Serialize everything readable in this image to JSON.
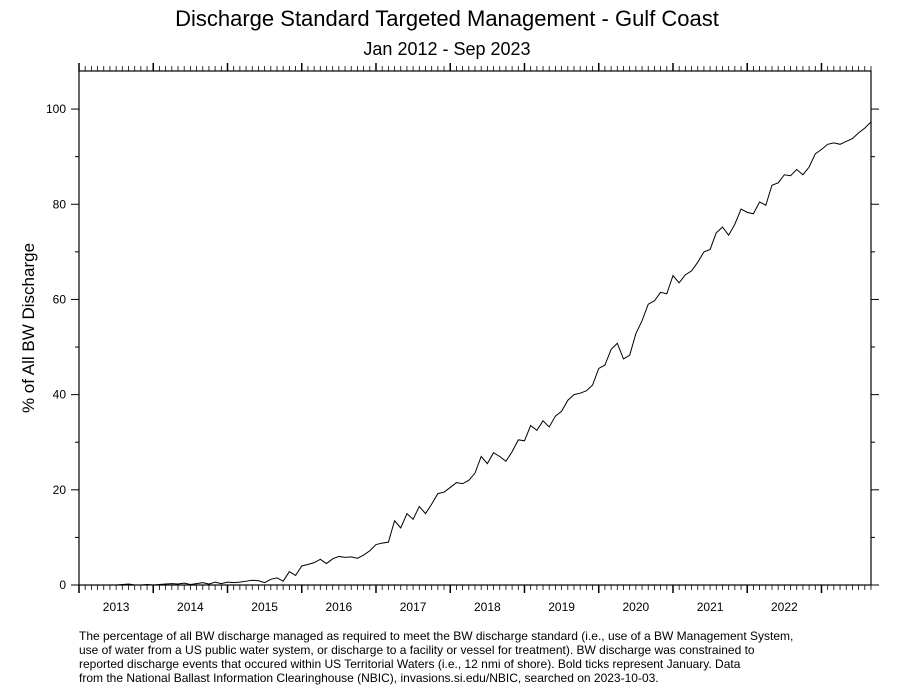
{
  "chart_data": {
    "type": "line",
    "title": "Discharge Standard Targeted Management - Gulf Coast",
    "subtitle": "Jan 2012 - Sep 2023",
    "y_label": "% of All BW Discharge",
    "note": [
      "The percentage of all BW discharge managed as required to meet the BW discharge standard (i.e., use of a BW Management System,",
      "use of water from a US public water system, or discharge to a facility or vessel for treatment). BW discharge was constrained to",
      "reported discharge events that occured within US Territorial Waters (i.e., 12 nmi of shore). Bold ticks represent January. Data",
      "from the National Ballast Information Clearinghouse (NBIC), invasions.si.edu/NBIC, searched on 2023-10-03."
    ],
    "xlim": [
      2013,
      2023.667
    ],
    "ylim": [
      0,
      108
    ],
    "yticks": [
      0,
      20,
      40,
      60,
      80,
      100
    ],
    "xticks": [
      {
        "value": 2013.5,
        "label": "2013"
      },
      {
        "value": 2014.5,
        "label": "2014"
      },
      {
        "value": 2015.5,
        "label": "2015"
      },
      {
        "value": 2016.5,
        "label": "2016"
      },
      {
        "value": 2017.5,
        "label": "2017"
      },
      {
        "value": 2018.5,
        "label": "2018"
      },
      {
        "value": 2019.5,
        "label": "2019"
      },
      {
        "value": 2020.5,
        "label": "2020"
      },
      {
        "value": 2021.5,
        "label": "2021"
      },
      {
        "value": 2022.5,
        "label": "2022"
      }
    ],
    "x": [
      2013,
      2013.083,
      2013.167,
      2013.25,
      2013.333,
      2013.417,
      2013.5,
      2013.583,
      2013.667,
      2013.75,
      2013.833,
      2013.917,
      2014,
      2014.083,
      2014.167,
      2014.25,
      2014.333,
      2014.417,
      2014.5,
      2014.583,
      2014.667,
      2014.75,
      2014.833,
      2014.917,
      2015,
      2015.083,
      2015.167,
      2015.25,
      2015.333,
      2015.417,
      2015.5,
      2015.583,
      2015.667,
      2015.75,
      2015.833,
      2015.917,
      2016,
      2016.083,
      2016.167,
      2016.25,
      2016.333,
      2016.417,
      2016.5,
      2016.583,
      2016.667,
      2016.75,
      2016.833,
      2016.917,
      2017,
      2017.083,
      2017.167,
      2017.25,
      2017.333,
      2017.417,
      2017.5,
      2017.583,
      2017.667,
      2017.75,
      2017.833,
      2017.917,
      2018,
      2018.083,
      2018.167,
      2018.25,
      2018.333,
      2018.417,
      2018.5,
      2018.583,
      2018.667,
      2018.75,
      2018.833,
      2018.917,
      2019,
      2019.083,
      2019.167,
      2019.25,
      2019.333,
      2019.417,
      2019.5,
      2019.583,
      2019.667,
      2019.75,
      2019.833,
      2019.917,
      2020,
      2020.083,
      2020.167,
      2020.25,
      2020.333,
      2020.417,
      2020.5,
      2020.583,
      2020.667,
      2020.75,
      2020.833,
      2020.917,
      2021,
      2021.083,
      2021.167,
      2021.25,
      2021.333,
      2021.417,
      2021.5,
      2021.583,
      2021.667,
      2021.75,
      2021.833,
      2021.917,
      2022,
      2022.083,
      2022.167,
      2022.25,
      2022.333,
      2022.417,
      2022.5,
      2022.583,
      2022.667,
      2022.75,
      2022.833,
      2022.917,
      2023,
      2023.083,
      2023.167,
      2023.25,
      2023.333,
      2023.417,
      2023.5,
      2023.583,
      2023.667
    ],
    "series": [
      {
        "color": "#000000",
        "values": [
          0,
          0,
          0,
          0,
          0,
          0,
          0,
          0.1,
          0.2,
          0,
          0,
          0.1,
          0,
          0.1,
          0.2,
          0.3,
          0.2,
          0.4,
          0.1,
          0.3,
          0.5,
          0.2,
          0.6,
          0.3,
          0.6,
          0.5,
          0.6,
          0.8,
          1.0,
          0.9,
          0.5,
          1.2,
          1.5,
          0.8,
          2.8,
          2.0,
          4.0,
          4.3,
          4.7,
          5.4,
          4.5,
          5.5,
          6.0,
          5.8,
          5.9,
          5.6,
          6.3,
          7.2,
          8.5,
          8.8,
          9.0,
          13.5,
          12.0,
          15.0,
          13.8,
          16.5,
          15.0,
          17.0,
          19.2,
          19.5,
          20.5,
          21.5,
          21.3,
          22.0,
          23.5,
          27.0,
          25.5,
          27.8,
          27.0,
          26.0,
          28.0,
          30.5,
          30.3,
          33.5,
          32.5,
          34.5,
          33.2,
          35.5,
          36.5,
          38.8,
          40.0,
          40.3,
          40.8,
          42.0,
          45.5,
          46.2,
          49.5,
          50.8,
          47.5,
          48.3,
          52.8,
          55.5,
          59.0,
          59.7,
          61.5,
          61.2,
          65.0,
          63.5,
          65.2,
          66.0,
          67.8,
          70.0,
          70.5,
          74.0,
          75.2,
          73.5,
          75.8,
          79.0,
          78.3,
          78.0,
          80.5,
          79.8,
          84.0,
          84.5,
          86.2,
          86.0,
          87.3,
          86.2,
          87.8,
          90.6,
          91.5,
          92.6,
          92.9,
          92.6,
          93.2,
          93.8,
          95.0,
          96.0,
          97.3
        ]
      }
    ]
  }
}
